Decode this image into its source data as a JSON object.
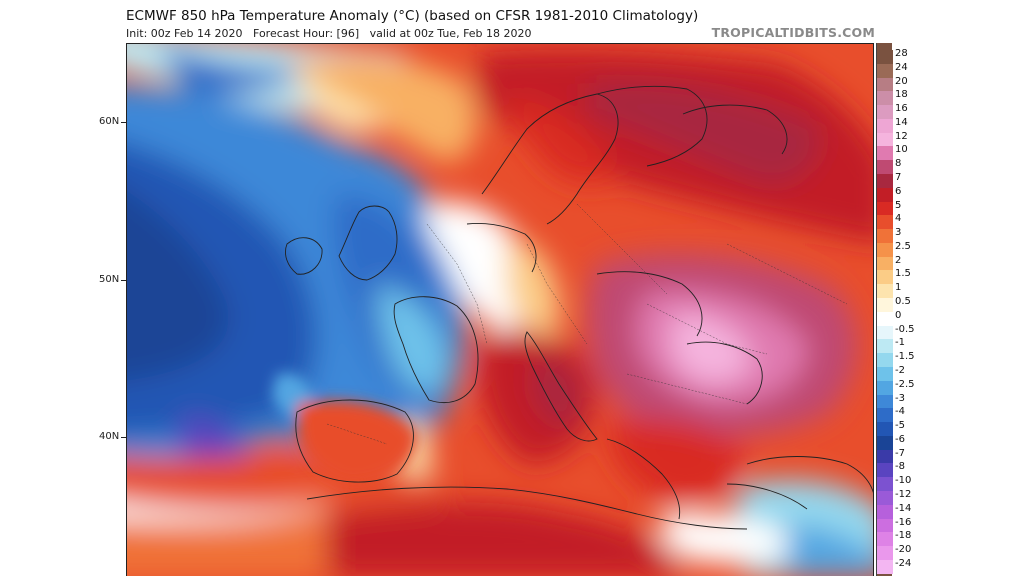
{
  "header": {
    "title": "ECMWF 850 hPa Temperature Anomaly (°C) (based on CFSR 1981-2010 Climatology)",
    "subtitle": "Init: 00z Feb 14 2020   Forecast Hour: [96]   valid at 00z Tue, Feb 18 2020",
    "credit": "TROPICALTIDBITS.COM"
  },
  "map": {
    "region": "Europe",
    "latitude_labels": [
      "60N",
      "50N",
      "40N"
    ]
  },
  "colorbar": {
    "levels": [
      {
        "label": "28",
        "color": "#7a5240"
      },
      {
        "label": "24",
        "color": "#9a6a56"
      },
      {
        "label": "20",
        "color": "#b77d84"
      },
      {
        "label": "18",
        "color": "#cc8ea8"
      },
      {
        "label": "16",
        "color": "#dc9bc0"
      },
      {
        "label": "14",
        "color": "#eea6d4"
      },
      {
        "label": "12",
        "color": "#f5b4de"
      },
      {
        "label": "10",
        "color": "#e07ab0"
      },
      {
        "label": "8",
        "color": "#bf4a72"
      },
      {
        "label": "7",
        "color": "#a8283f"
      },
      {
        "label": "6",
        "color": "#c21e26"
      },
      {
        "label": "5",
        "color": "#d92a24"
      },
      {
        "label": "4",
        "color": "#e84e2c"
      },
      {
        "label": "3",
        "color": "#f07238"
      },
      {
        "label": "2.5",
        "color": "#f5924a"
      },
      {
        "label": "2",
        "color": "#f8b064"
      },
      {
        "label": "1.5",
        "color": "#fbcc86"
      },
      {
        "label": "1",
        "color": "#fde4ae"
      },
      {
        "label": "0.5",
        "color": "#fff6dc"
      },
      {
        "label": "0",
        "color": "#ffffff"
      },
      {
        "label": "-0.5",
        "color": "#e6f6fb"
      },
      {
        "label": "-1",
        "color": "#bde9f3"
      },
      {
        "label": "-1.5",
        "color": "#94d8ee"
      },
      {
        "label": "-2",
        "color": "#6ec2ea"
      },
      {
        "label": "-2.5",
        "color": "#52a6e2"
      },
      {
        "label": "-3",
        "color": "#3e88d8"
      },
      {
        "label": "-4",
        "color": "#2e6cc8"
      },
      {
        "label": "-5",
        "color": "#2256b4"
      },
      {
        "label": "-6",
        "color": "#1a4496"
      },
      {
        "label": "-7",
        "color": "#3a3aa8"
      },
      {
        "label": "-8",
        "color": "#5a44c0"
      },
      {
        "label": "-10",
        "color": "#7c52d0"
      },
      {
        "label": "-12",
        "color": "#9a5ad8"
      },
      {
        "label": "-14",
        "color": "#b660dc"
      },
      {
        "label": "-16",
        "color": "#cc6ee0"
      },
      {
        "label": "-18",
        "color": "#de82e6"
      },
      {
        "label": "-20",
        "color": "#ea98ec"
      },
      {
        "label": "-24",
        "color": "#f3b6f2"
      }
    ]
  }
}
